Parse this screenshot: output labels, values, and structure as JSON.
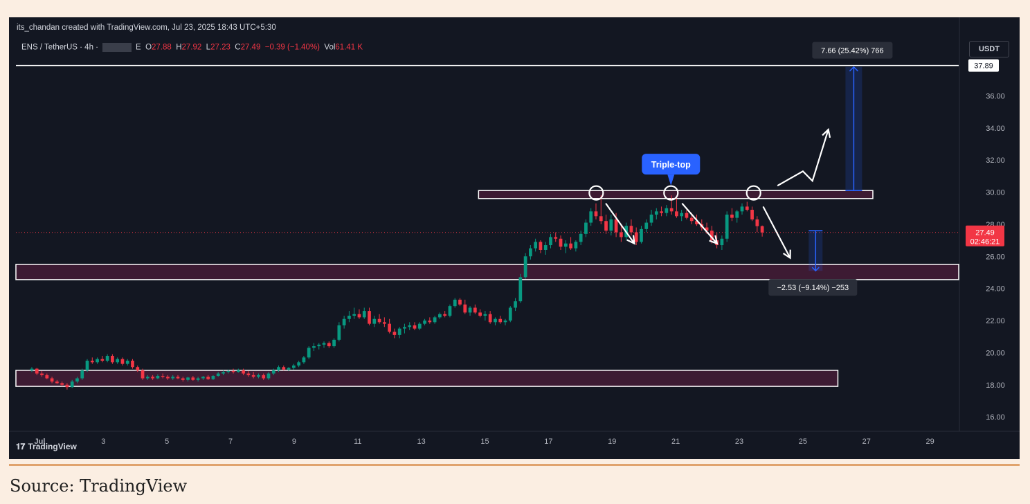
{
  "header": {
    "credit": "its_chandan created with TradingView.com, Jul 23, 2025 18:43 UTC+5:30",
    "symbol": "ENS / TetherUS · 4h ·",
    "exchange_tail": "E",
    "open_label": "O",
    "open": "27.88",
    "high_label": "H",
    "high": "27.92",
    "low_label": "L",
    "low": "27.23",
    "close_label": "C",
    "close": "27.49",
    "change": "−0.39 (−1.40%)",
    "vol_label": "Vol",
    "vol": "61.41 K",
    "currency_button": "USDT"
  },
  "footer": {
    "logo_text": "TradingView",
    "source": "Source: TradingView"
  },
  "colors": {
    "up": "#089981",
    "down": "#f23645",
    "zone": "#3d1b33",
    "measure": "#2962ff",
    "bg": "#131722",
    "callout": "#2962ff"
  },
  "chart_data": {
    "type": "candlestick",
    "timeframe": "4h",
    "xlim": [
      0.25,
      29.9
    ],
    "ylim": [
      15.1,
      38.95
    ],
    "x_ticks": [
      {
        "label": "Jul",
        "v": 1
      },
      {
        "label": "3",
        "v": 3
      },
      {
        "label": "5",
        "v": 5
      },
      {
        "label": "7",
        "v": 7
      },
      {
        "label": "9",
        "v": 9
      },
      {
        "label": "11",
        "v": 11
      },
      {
        "label": "13",
        "v": 13
      },
      {
        "label": "15",
        "v": 15
      },
      {
        "label": "17",
        "v": 17
      },
      {
        "label": "19",
        "v": 19
      },
      {
        "label": "21",
        "v": 21
      },
      {
        "label": "23",
        "v": 23
      },
      {
        "label": "25",
        "v": 25
      },
      {
        "label": "27",
        "v": 27
      },
      {
        "label": "29",
        "v": 29
      }
    ],
    "y_ticks": [
      "16.00",
      "18.00",
      "20.00",
      "22.00",
      "24.00",
      "26.00",
      "28.00",
      "30.00",
      "32.00",
      "34.00",
      "36.00"
    ],
    "price_label": "27.49",
    "countdown": "02:46:21",
    "top_line_label": "37.89",
    "top_line_price": 37.89,
    "annotations": {
      "triple_top_label": "Triple-top",
      "up_measure_label": "7.66 (25.42%) 766",
      "down_measure_label": "−2.53 (−9.14%) −253",
      "up_measure": {
        "x": 26.6,
        "from": 30.1,
        "to": 37.8
      },
      "down_measure": {
        "x": 25.4,
        "from": 27.6,
        "to": 25.1
      },
      "resistance_zone": {
        "x0": 14.8,
        "x1": 27.2,
        "y0": 29.6,
        "y1": 30.1
      },
      "support_zone": {
        "x0": 0.25,
        "x1": 29.9,
        "y0": 24.55,
        "y1": 25.5
      },
      "base_zone": {
        "x0": 0.25,
        "x1": 26.1,
        "y0": 17.9,
        "y1": 18.9
      },
      "tops": [
        {
          "x": 18.5,
          "y": 29.95
        },
        {
          "x": 20.85,
          "y": 29.95
        },
        {
          "x": 23.45,
          "y": 29.95
        }
      ]
    },
    "candles": [
      {
        "o": 18.9,
        "h": 19.1,
        "l": 18.8,
        "c": 19.0
      },
      {
        "o": 19.0,
        "h": 19.05,
        "l": 18.6,
        "c": 18.7
      },
      {
        "o": 18.7,
        "h": 18.85,
        "l": 18.5,
        "c": 18.6
      },
      {
        "o": 18.6,
        "h": 18.7,
        "l": 18.35,
        "c": 18.4
      },
      {
        "o": 18.4,
        "h": 18.5,
        "l": 18.1,
        "c": 18.2
      },
      {
        "o": 18.2,
        "h": 18.3,
        "l": 18.05,
        "c": 18.1
      },
      {
        "o": 18.1,
        "h": 18.2,
        "l": 17.9,
        "c": 18.0
      },
      {
        "o": 18.0,
        "h": 18.1,
        "l": 17.7,
        "c": 17.85
      },
      {
        "o": 17.85,
        "h": 18.3,
        "l": 17.8,
        "c": 18.2
      },
      {
        "o": 18.2,
        "h": 18.5,
        "l": 18.1,
        "c": 18.4
      },
      {
        "o": 18.4,
        "h": 19.0,
        "l": 18.3,
        "c": 18.9
      },
      {
        "o": 18.9,
        "h": 19.6,
        "l": 18.8,
        "c": 19.5
      },
      {
        "o": 19.5,
        "h": 19.7,
        "l": 19.3,
        "c": 19.4
      },
      {
        "o": 19.4,
        "h": 19.7,
        "l": 19.3,
        "c": 19.6
      },
      {
        "o": 19.6,
        "h": 19.8,
        "l": 19.4,
        "c": 19.5
      },
      {
        "o": 19.5,
        "h": 19.9,
        "l": 19.4,
        "c": 19.8
      },
      {
        "o": 19.8,
        "h": 19.9,
        "l": 19.3,
        "c": 19.4
      },
      {
        "o": 19.4,
        "h": 19.7,
        "l": 19.3,
        "c": 19.6
      },
      {
        "o": 19.6,
        "h": 19.7,
        "l": 19.2,
        "c": 19.3
      },
      {
        "o": 19.3,
        "h": 19.6,
        "l": 19.2,
        "c": 19.5
      },
      {
        "o": 19.5,
        "h": 19.6,
        "l": 19.0,
        "c": 19.1
      },
      {
        "o": 19.1,
        "h": 19.2,
        "l": 18.8,
        "c": 18.9
      },
      {
        "o": 18.9,
        "h": 19.0,
        "l": 18.3,
        "c": 18.4
      },
      {
        "o": 18.4,
        "h": 18.6,
        "l": 18.3,
        "c": 18.5
      },
      {
        "o": 18.5,
        "h": 18.6,
        "l": 18.3,
        "c": 18.4
      },
      {
        "o": 18.4,
        "h": 18.65,
        "l": 18.35,
        "c": 18.55
      },
      {
        "o": 18.55,
        "h": 18.7,
        "l": 18.4,
        "c": 18.5
      },
      {
        "o": 18.5,
        "h": 18.6,
        "l": 18.3,
        "c": 18.4
      },
      {
        "o": 18.4,
        "h": 18.6,
        "l": 18.3,
        "c": 18.5
      },
      {
        "o": 18.5,
        "h": 18.6,
        "l": 18.35,
        "c": 18.4
      },
      {
        "o": 18.4,
        "h": 18.5,
        "l": 18.2,
        "c": 18.3
      },
      {
        "o": 18.3,
        "h": 18.5,
        "l": 18.2,
        "c": 18.45
      },
      {
        "o": 18.45,
        "h": 18.55,
        "l": 18.25,
        "c": 18.3
      },
      {
        "o": 18.3,
        "h": 18.5,
        "l": 18.2,
        "c": 18.4
      },
      {
        "o": 18.4,
        "h": 18.55,
        "l": 18.3,
        "c": 18.5
      },
      {
        "o": 18.5,
        "h": 18.6,
        "l": 18.3,
        "c": 18.35
      },
      {
        "o": 18.35,
        "h": 18.6,
        "l": 18.3,
        "c": 18.55
      },
      {
        "o": 18.55,
        "h": 18.8,
        "l": 18.5,
        "c": 18.7
      },
      {
        "o": 18.7,
        "h": 18.9,
        "l": 18.6,
        "c": 18.8
      },
      {
        "o": 18.8,
        "h": 18.95,
        "l": 18.7,
        "c": 18.85
      },
      {
        "o": 18.85,
        "h": 19.0,
        "l": 18.7,
        "c": 18.8
      },
      {
        "o": 18.8,
        "h": 19.0,
        "l": 18.75,
        "c": 18.9
      },
      {
        "o": 18.9,
        "h": 19.0,
        "l": 18.6,
        "c": 18.7
      },
      {
        "o": 18.7,
        "h": 18.85,
        "l": 18.5,
        "c": 18.6
      },
      {
        "o": 18.6,
        "h": 18.8,
        "l": 18.4,
        "c": 18.5
      },
      {
        "o": 18.5,
        "h": 18.7,
        "l": 18.4,
        "c": 18.6
      },
      {
        "o": 18.6,
        "h": 18.7,
        "l": 18.3,
        "c": 18.4
      },
      {
        "o": 18.4,
        "h": 18.8,
        "l": 18.3,
        "c": 18.7
      },
      {
        "o": 18.7,
        "h": 19.0,
        "l": 18.6,
        "c": 18.9
      },
      {
        "o": 18.9,
        "h": 19.2,
        "l": 18.8,
        "c": 19.1
      },
      {
        "o": 19.1,
        "h": 19.2,
        "l": 18.9,
        "c": 18.95
      },
      {
        "o": 18.95,
        "h": 19.1,
        "l": 18.85,
        "c": 19.05
      },
      {
        "o": 19.05,
        "h": 19.3,
        "l": 18.95,
        "c": 19.2
      },
      {
        "o": 19.2,
        "h": 19.5,
        "l": 19.1,
        "c": 19.4
      },
      {
        "o": 19.4,
        "h": 19.8,
        "l": 19.3,
        "c": 19.7
      },
      {
        "o": 19.7,
        "h": 20.4,
        "l": 19.6,
        "c": 20.3
      },
      {
        "o": 20.3,
        "h": 20.6,
        "l": 20.1,
        "c": 20.4
      },
      {
        "o": 20.4,
        "h": 20.6,
        "l": 20.2,
        "c": 20.5
      },
      {
        "o": 20.5,
        "h": 20.7,
        "l": 20.3,
        "c": 20.6
      },
      {
        "o": 20.6,
        "h": 20.7,
        "l": 20.3,
        "c": 20.4
      },
      {
        "o": 20.4,
        "h": 20.9,
        "l": 20.3,
        "c": 20.8
      },
      {
        "o": 20.8,
        "h": 21.9,
        "l": 20.7,
        "c": 21.7
      },
      {
        "o": 21.7,
        "h": 22.3,
        "l": 21.5,
        "c": 22.1
      },
      {
        "o": 22.1,
        "h": 22.6,
        "l": 21.9,
        "c": 22.3
      },
      {
        "o": 22.3,
        "h": 22.8,
        "l": 22.1,
        "c": 22.4
      },
      {
        "o": 22.4,
        "h": 22.7,
        "l": 22.1,
        "c": 22.2
      },
      {
        "o": 22.2,
        "h": 22.8,
        "l": 22.1,
        "c": 22.6
      },
      {
        "o": 22.6,
        "h": 22.8,
        "l": 21.7,
        "c": 21.8
      },
      {
        "o": 21.8,
        "h": 22.3,
        "l": 21.6,
        "c": 22.1
      },
      {
        "o": 22.1,
        "h": 22.4,
        "l": 21.8,
        "c": 21.9
      },
      {
        "o": 21.9,
        "h": 22.2,
        "l": 21.6,
        "c": 21.8
      },
      {
        "o": 21.8,
        "h": 22.1,
        "l": 21.2,
        "c": 21.3
      },
      {
        "o": 21.3,
        "h": 21.5,
        "l": 20.9,
        "c": 21.1
      },
      {
        "o": 21.1,
        "h": 21.6,
        "l": 20.9,
        "c": 21.5
      },
      {
        "o": 21.5,
        "h": 21.8,
        "l": 21.2,
        "c": 21.6
      },
      {
        "o": 21.6,
        "h": 21.9,
        "l": 21.4,
        "c": 21.7
      },
      {
        "o": 21.7,
        "h": 21.9,
        "l": 21.4,
        "c": 21.5
      },
      {
        "o": 21.5,
        "h": 21.9,
        "l": 21.4,
        "c": 21.8
      },
      {
        "o": 21.8,
        "h": 22.1,
        "l": 21.7,
        "c": 22.0
      },
      {
        "o": 22.0,
        "h": 22.2,
        "l": 21.8,
        "c": 21.9
      },
      {
        "o": 21.9,
        "h": 22.3,
        "l": 21.8,
        "c": 22.2
      },
      {
        "o": 22.2,
        "h": 22.5,
        "l": 22.1,
        "c": 22.4
      },
      {
        "o": 22.4,
        "h": 22.6,
        "l": 22.2,
        "c": 22.3
      },
      {
        "o": 22.3,
        "h": 23.0,
        "l": 22.2,
        "c": 22.9
      },
      {
        "o": 22.9,
        "h": 23.4,
        "l": 22.8,
        "c": 23.3
      },
      {
        "o": 23.3,
        "h": 23.4,
        "l": 22.9,
        "c": 23.0
      },
      {
        "o": 23.0,
        "h": 23.3,
        "l": 22.4,
        "c": 22.5
      },
      {
        "o": 22.5,
        "h": 22.9,
        "l": 22.3,
        "c": 22.8
      },
      {
        "o": 22.8,
        "h": 23.0,
        "l": 22.4,
        "c": 22.5
      },
      {
        "o": 22.5,
        "h": 22.7,
        "l": 22.2,
        "c": 22.3
      },
      {
        "o": 22.3,
        "h": 22.6,
        "l": 22.0,
        "c": 22.4
      },
      {
        "o": 22.4,
        "h": 22.6,
        "l": 21.8,
        "c": 21.9
      },
      {
        "o": 21.9,
        "h": 22.2,
        "l": 21.7,
        "c": 22.1
      },
      {
        "o": 22.1,
        "h": 22.3,
        "l": 21.8,
        "c": 21.9
      },
      {
        "o": 21.9,
        "h": 22.1,
        "l": 21.7,
        "c": 22.0
      },
      {
        "o": 22.0,
        "h": 22.9,
        "l": 21.9,
        "c": 22.8
      },
      {
        "o": 22.8,
        "h": 23.4,
        "l": 22.6,
        "c": 23.2
      },
      {
        "o": 23.2,
        "h": 24.9,
        "l": 23.1,
        "c": 24.7
      },
      {
        "o": 24.7,
        "h": 26.2,
        "l": 24.6,
        "c": 26.0
      },
      {
        "o": 26.0,
        "h": 26.7,
        "l": 25.8,
        "c": 26.5
      },
      {
        "o": 26.5,
        "h": 27.1,
        "l": 26.3,
        "c": 26.9
      },
      {
        "o": 26.9,
        "h": 27.0,
        "l": 26.2,
        "c": 26.4
      },
      {
        "o": 26.4,
        "h": 26.9,
        "l": 26.1,
        "c": 26.7
      },
      {
        "o": 26.7,
        "h": 27.4,
        "l": 26.5,
        "c": 27.2
      },
      {
        "o": 27.2,
        "h": 27.5,
        "l": 26.9,
        "c": 27.1
      },
      {
        "o": 27.1,
        "h": 27.3,
        "l": 26.4,
        "c": 26.6
      },
      {
        "o": 26.6,
        "h": 27.0,
        "l": 26.2,
        "c": 26.8
      },
      {
        "o": 26.8,
        "h": 27.2,
        "l": 26.4,
        "c": 26.5
      },
      {
        "o": 26.5,
        "h": 27.0,
        "l": 26.3,
        "c": 26.9
      },
      {
        "o": 26.9,
        "h": 27.6,
        "l": 26.7,
        "c": 27.4
      },
      {
        "o": 27.4,
        "h": 28.3,
        "l": 27.2,
        "c": 28.1
      },
      {
        "o": 28.1,
        "h": 29.0,
        "l": 27.9,
        "c": 28.8
      },
      {
        "o": 28.8,
        "h": 29.3,
        "l": 28.3,
        "c": 28.5
      },
      {
        "o": 28.5,
        "h": 29.8,
        "l": 28.0,
        "c": 28.2
      },
      {
        "o": 28.2,
        "h": 28.6,
        "l": 27.4,
        "c": 27.6
      },
      {
        "o": 27.6,
        "h": 28.6,
        "l": 27.3,
        "c": 28.3
      },
      {
        "o": 28.3,
        "h": 28.7,
        "l": 27.2,
        "c": 27.5
      },
      {
        "o": 27.5,
        "h": 27.9,
        "l": 26.9,
        "c": 27.2
      },
      {
        "o": 27.2,
        "h": 28.1,
        "l": 27.0,
        "c": 27.9
      },
      {
        "o": 27.9,
        "h": 28.3,
        "l": 27.3,
        "c": 27.5
      },
      {
        "o": 27.5,
        "h": 27.8,
        "l": 26.7,
        "c": 26.9
      },
      {
        "o": 26.9,
        "h": 27.9,
        "l": 26.8,
        "c": 27.7
      },
      {
        "o": 27.7,
        "h": 28.3,
        "l": 27.5,
        "c": 28.1
      },
      {
        "o": 28.1,
        "h": 28.9,
        "l": 27.9,
        "c": 28.6
      },
      {
        "o": 28.6,
        "h": 29.0,
        "l": 28.3,
        "c": 28.8
      },
      {
        "o": 28.8,
        "h": 29.1,
        "l": 28.5,
        "c": 28.7
      },
      {
        "o": 28.7,
        "h": 29.2,
        "l": 28.5,
        "c": 29.0
      },
      {
        "o": 29.0,
        "h": 29.8,
        "l": 28.6,
        "c": 28.8
      },
      {
        "o": 28.8,
        "h": 29.6,
        "l": 28.4,
        "c": 28.5
      },
      {
        "o": 28.5,
        "h": 28.9,
        "l": 28.2,
        "c": 28.7
      },
      {
        "o": 28.7,
        "h": 28.9,
        "l": 28.3,
        "c": 28.4
      },
      {
        "o": 28.4,
        "h": 28.7,
        "l": 28.0,
        "c": 28.2
      },
      {
        "o": 28.2,
        "h": 28.6,
        "l": 27.9,
        "c": 28.0
      },
      {
        "o": 28.0,
        "h": 28.3,
        "l": 27.6,
        "c": 27.8
      },
      {
        "o": 27.8,
        "h": 28.1,
        "l": 27.4,
        "c": 27.6
      },
      {
        "o": 27.6,
        "h": 27.9,
        "l": 26.8,
        "c": 27.0
      },
      {
        "o": 27.0,
        "h": 27.5,
        "l": 26.5,
        "c": 26.7
      },
      {
        "o": 26.7,
        "h": 27.3,
        "l": 26.4,
        "c": 27.1
      },
      {
        "o": 27.1,
        "h": 28.8,
        "l": 26.9,
        "c": 28.6
      },
      {
        "o": 28.6,
        "h": 29.0,
        "l": 28.2,
        "c": 28.4
      },
      {
        "o": 28.4,
        "h": 28.9,
        "l": 28.1,
        "c": 28.8
      },
      {
        "o": 28.8,
        "h": 29.3,
        "l": 28.6,
        "c": 29.1
      },
      {
        "o": 29.1,
        "h": 29.4,
        "l": 28.8,
        "c": 28.9
      },
      {
        "o": 28.9,
        "h": 29.1,
        "l": 28.2,
        "c": 28.3
      },
      {
        "o": 28.3,
        "h": 28.5,
        "l": 27.5,
        "c": 27.88
      },
      {
        "o": 27.88,
        "h": 27.92,
        "l": 27.23,
        "c": 27.49
      }
    ]
  }
}
